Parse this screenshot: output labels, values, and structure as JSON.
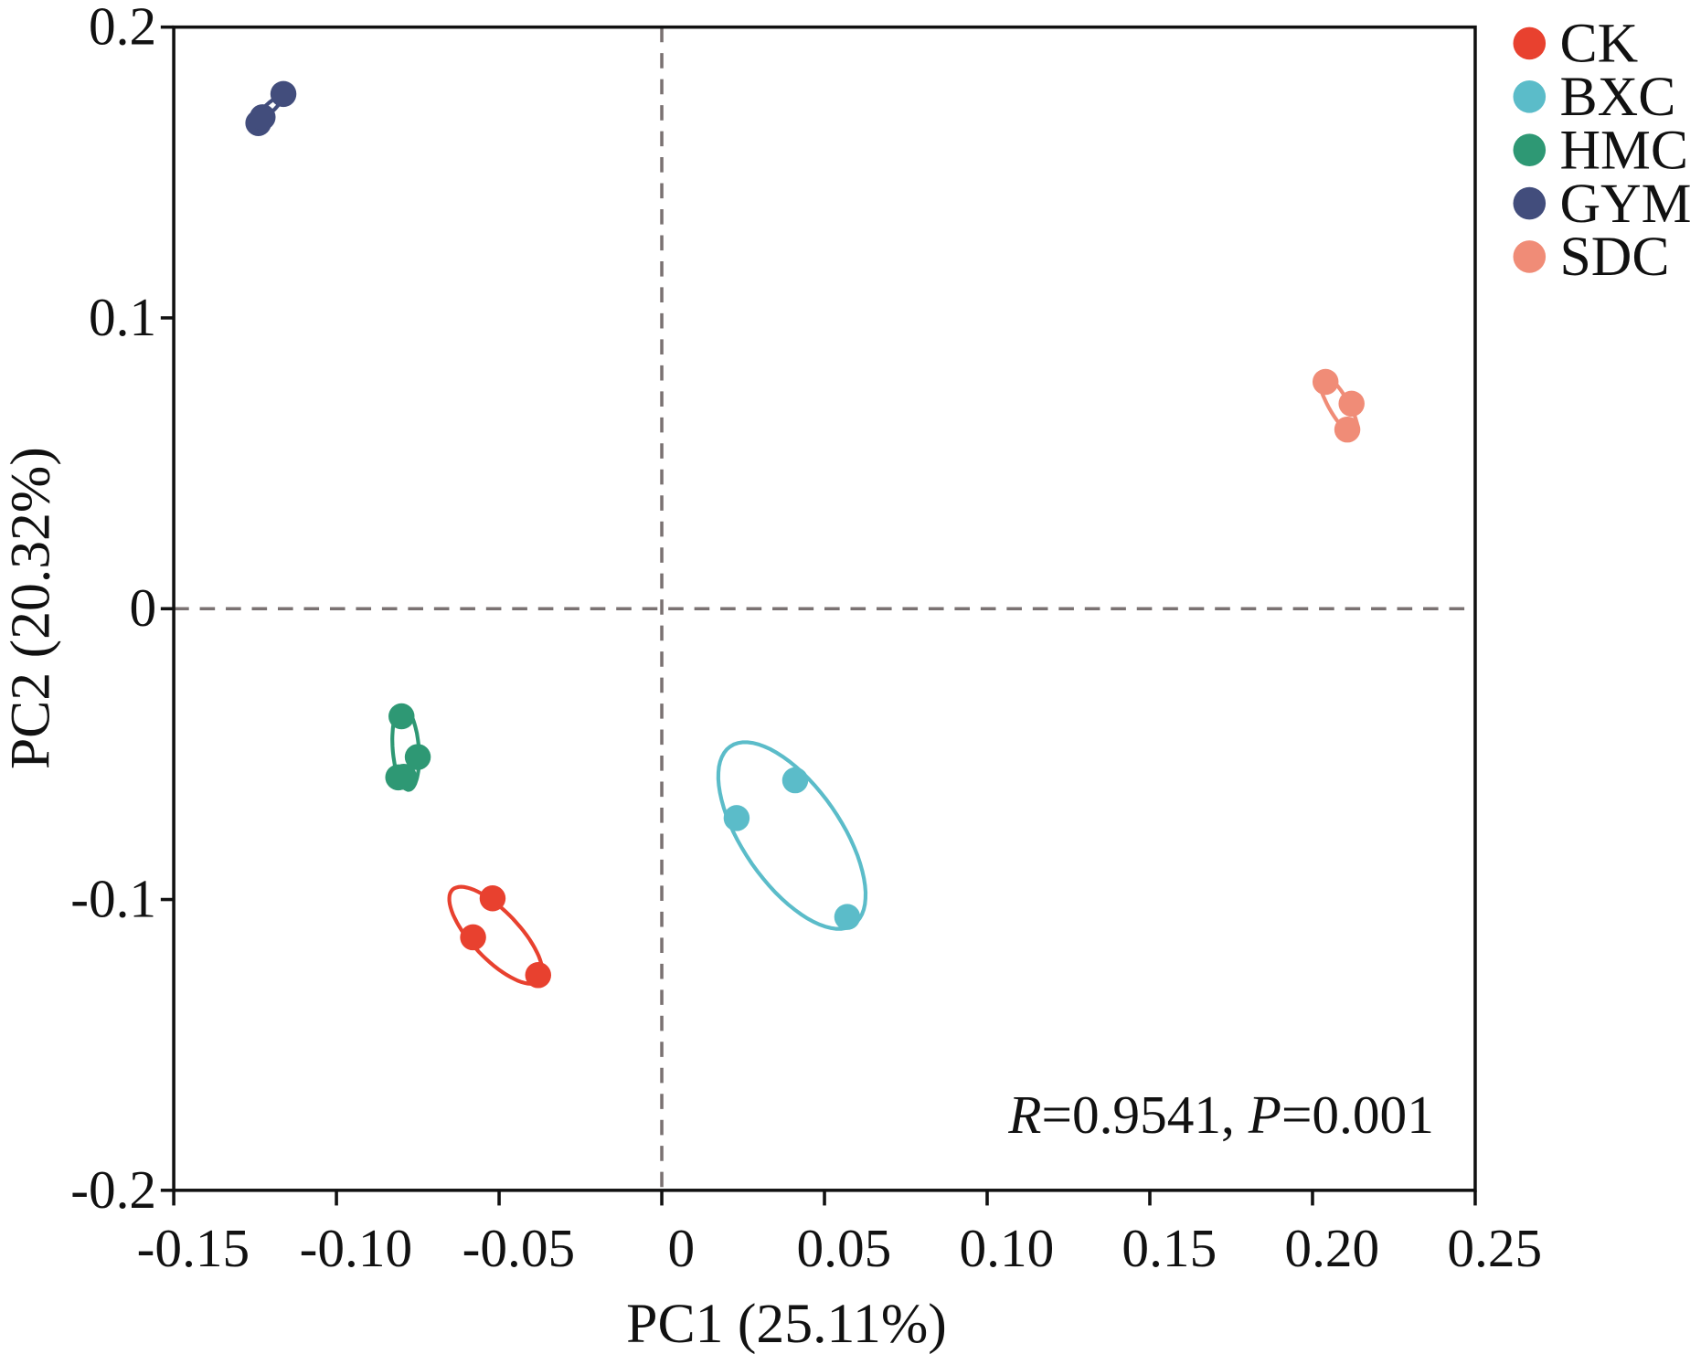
{
  "chart_data": {
    "type": "scatter",
    "title": "",
    "xlabel": "PC1 (25.11%)",
    "ylabel": "PC2 (20.32%)",
    "xlim": [
      -0.15,
      0.25
    ],
    "ylim": [
      -0.2,
      0.2
    ],
    "xticks": [
      -0.15,
      -0.1,
      -0.05,
      0,
      0.05,
      0.1,
      0.15,
      0.2,
      0.25
    ],
    "xtick_labels": [
      "-0.15",
      "-0.10",
      "-0.05",
      "0",
      "0.05",
      "0.10",
      "0.15",
      "0.20",
      "0.25"
    ],
    "yticks": [
      0.2,
      0.1,
      0,
      -0.1,
      -0.2
    ],
    "ytick_labels": [
      "0.2",
      "0.1",
      "0",
      "-0.1",
      "-0.2"
    ],
    "grid": false,
    "reference_lines": {
      "x": 0,
      "y": 0,
      "style": "dashed",
      "color": "#7a7272"
    },
    "legend_position": "top-right-outside",
    "annotation": {
      "r_label": "R",
      "r_value": "=0.9541, ",
      "p_label": "P",
      "p_value": "=0.001"
    },
    "series": [
      {
        "name": "CK",
        "color": "#e8412f",
        "points": [
          [
            -0.052,
            -0.0996
          ],
          [
            -0.058,
            -0.113
          ],
          [
            -0.038,
            -0.126
          ]
        ],
        "ellipse": {
          "center": [
            -0.051,
            -0.1123
          ],
          "major": [
            0.0133,
            -0.0157
          ],
          "minor": [
            -0.0053,
            -0.0056
          ]
        }
      },
      {
        "name": "BXC",
        "color": "#5bbcc9",
        "points": [
          [
            0.023,
            -0.072
          ],
          [
            0.041,
            -0.059
          ],
          [
            0.057,
            -0.106
          ]
        ],
        "ellipse": {
          "center": [
            0.04,
            -0.078
          ],
          "major": [
            0.019,
            -0.0306
          ],
          "minor": [
            -0.0123,
            -0.0097
          ]
        }
      },
      {
        "name": "HMC",
        "color": "#2e9874",
        "points": [
          [
            -0.08,
            -0.037
          ],
          [
            -0.075,
            -0.051
          ],
          [
            -0.081,
            -0.058
          ],
          [
            -0.0793,
            -0.0578
          ]
        ],
        "ellipse": {
          "center": [
            -0.0787,
            -0.0481
          ],
          "major": [
            0.001,
            -0.0142
          ],
          "minor": [
            0.004,
            0.0004
          ]
        }
      },
      {
        "name": "GYM",
        "color": "#424d7c",
        "points": [
          [
            -0.124,
            0.167
          ],
          [
            -0.1227,
            0.169
          ],
          [
            -0.1163,
            0.177
          ]
        ],
        "ellipse": {
          "center": [
            -0.1207,
            0.172
          ],
          "major": [
            0.0043,
            0.0045
          ],
          "minor": [
            0.001,
            -0.001
          ]
        }
      },
      {
        "name": "SDC",
        "color": "#f08c77",
        "points": [
          [
            0.204,
            0.078
          ],
          [
            0.212,
            0.0705
          ],
          [
            0.2107,
            0.0616
          ]
        ],
        "ellipse": {
          "center": [
            0.208,
            0.0701
          ],
          "major": [
            0.0053,
            -0.0104
          ],
          "minor": [
            0.0027,
            0.0015
          ]
        }
      }
    ]
  }
}
